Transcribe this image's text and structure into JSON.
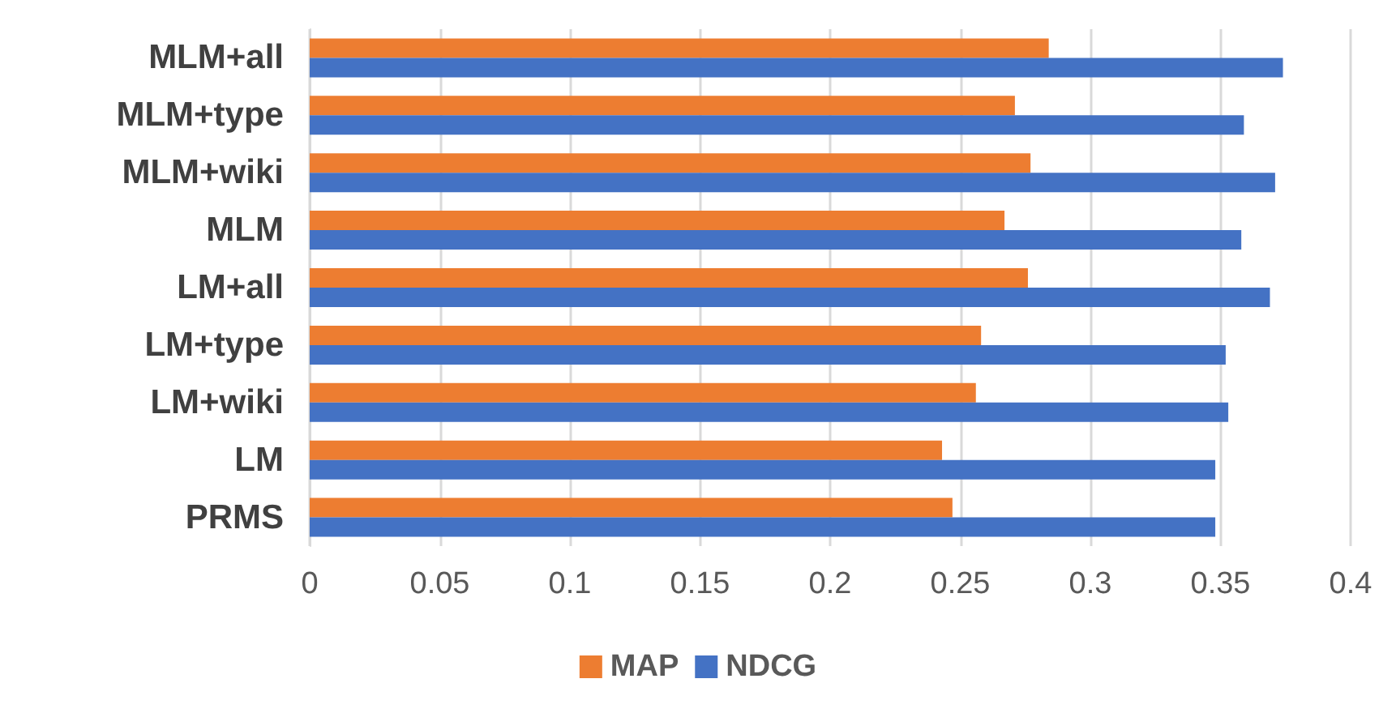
{
  "chart_data": {
    "type": "bar",
    "orientation": "horizontal",
    "categories": [
      "MLM+all",
      "MLM+type",
      "MLM+wiki",
      "MLM",
      "LM+all",
      "LM+type",
      "LM+wiki",
      "LM",
      "PRMS"
    ],
    "series": [
      {
        "name": "MAP",
        "color": "#ed7d31",
        "values": [
          0.284,
          0.271,
          0.277,
          0.267,
          0.276,
          0.258,
          0.256,
          0.243,
          0.247
        ]
      },
      {
        "name": "NDCG",
        "color": "#4472c4",
        "values": [
          0.374,
          0.359,
          0.371,
          0.358,
          0.369,
          0.352,
          0.353,
          0.348,
          0.348
        ]
      }
    ],
    "xlim": [
      0,
      0.4
    ],
    "xticks": [
      0,
      0.05,
      0.1,
      0.15,
      0.2,
      0.25,
      0.3,
      0.35,
      0.4
    ],
    "grid": "x",
    "legend": "bottom"
  }
}
